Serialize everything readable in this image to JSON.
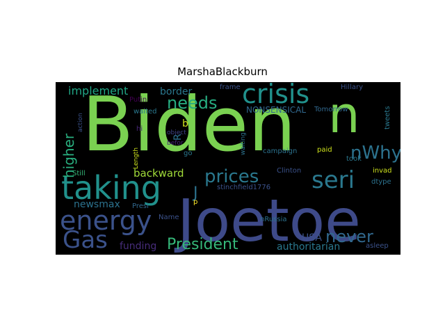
{
  "title": "MarshaBlackburn",
  "chart_data": {
    "type": "wordcloud",
    "title": "MarshaBlackburn",
    "background": "#000000",
    "words": [
      {
        "text": "Biden",
        "color": "#7ad151"
      },
      {
        "text": "Joetoe",
        "color": "#3e4a89"
      },
      {
        "text": "taking",
        "color": "#21918c"
      },
      {
        "text": "n",
        "color": "#7ad151"
      },
      {
        "text": "crisis",
        "color": "#21918c"
      },
      {
        "text": "energy",
        "color": "#3b528b"
      },
      {
        "text": "Gas",
        "color": "#3b528b"
      },
      {
        "text": "seri",
        "color": "#2a788e"
      },
      {
        "text": "nWhy",
        "color": "#2c728e"
      },
      {
        "text": "prices",
        "color": "#2a788e"
      },
      {
        "text": "President",
        "color": "#35b779"
      },
      {
        "text": "never",
        "color": "#31688e"
      },
      {
        "text": "higher",
        "color": "#29af7f"
      },
      {
        "text": "needs",
        "color": "#27ad81"
      },
      {
        "text": "implement",
        "color": "#21a685"
      },
      {
        "text": "border",
        "color": "#2a788e"
      },
      {
        "text": "backward",
        "color": "#a0da39"
      },
      {
        "text": "newsmax",
        "color": "#2c728e"
      },
      {
        "text": "funding",
        "color": "#472d7b"
      },
      {
        "text": "USA",
        "color": "#3b528b"
      },
      {
        "text": "authoritarian",
        "color": "#2a788e"
      },
      {
        "text": "J",
        "color": "#2c728e"
      },
      {
        "text": "NONSENSICAL",
        "color": "#31688e"
      },
      {
        "text": "b",
        "color": "#cde11d"
      },
      {
        "text": "R",
        "color": "#2c728e"
      },
      {
        "text": "Tomorrow",
        "color": "#31688e"
      },
      {
        "text": "Hillary",
        "color": "#3b528b"
      },
      {
        "text": "frame",
        "color": "#3b528b"
      },
      {
        "text": "Putin",
        "color": "#440154"
      },
      {
        "text": "waited",
        "color": "#2a788e"
      },
      {
        "text": "hi",
        "color": "#482878"
      },
      {
        "text": "object",
        "color": "#414487"
      },
      {
        "text": "befor",
        "color": "#482878"
      },
      {
        "text": "action",
        "color": "#3b528b"
      },
      {
        "text": "Length",
        "color": "#cde11d"
      },
      {
        "text": "go",
        "color": "#2a788e"
      },
      {
        "text": "waiting",
        "color": "#2c728e"
      },
      {
        "text": "campaign",
        "color": "#2c728e"
      },
      {
        "text": "paid",
        "color": "#cde11d"
      },
      {
        "text": "took",
        "color": "#2a788e"
      },
      {
        "text": "tweets",
        "color": "#2a788e"
      },
      {
        "text": "invad",
        "color": "#cde11d"
      },
      {
        "text": "dtype",
        "color": "#2c728e"
      },
      {
        "text": "Clinton",
        "color": "#3b528b"
      },
      {
        "text": "stinchfield1776",
        "color": "#3b528b"
      },
      {
        "text": "Still",
        "color": "#35b779"
      },
      {
        "text": "Presi",
        "color": "#31688e"
      },
      {
        "text": "p",
        "color": "#fde725"
      },
      {
        "text": "Name",
        "color": "#3b528b"
      },
      {
        "text": "nRussia",
        "color": "#2c728e"
      },
      {
        "text": "asleep",
        "color": "#3b528b"
      }
    ]
  }
}
